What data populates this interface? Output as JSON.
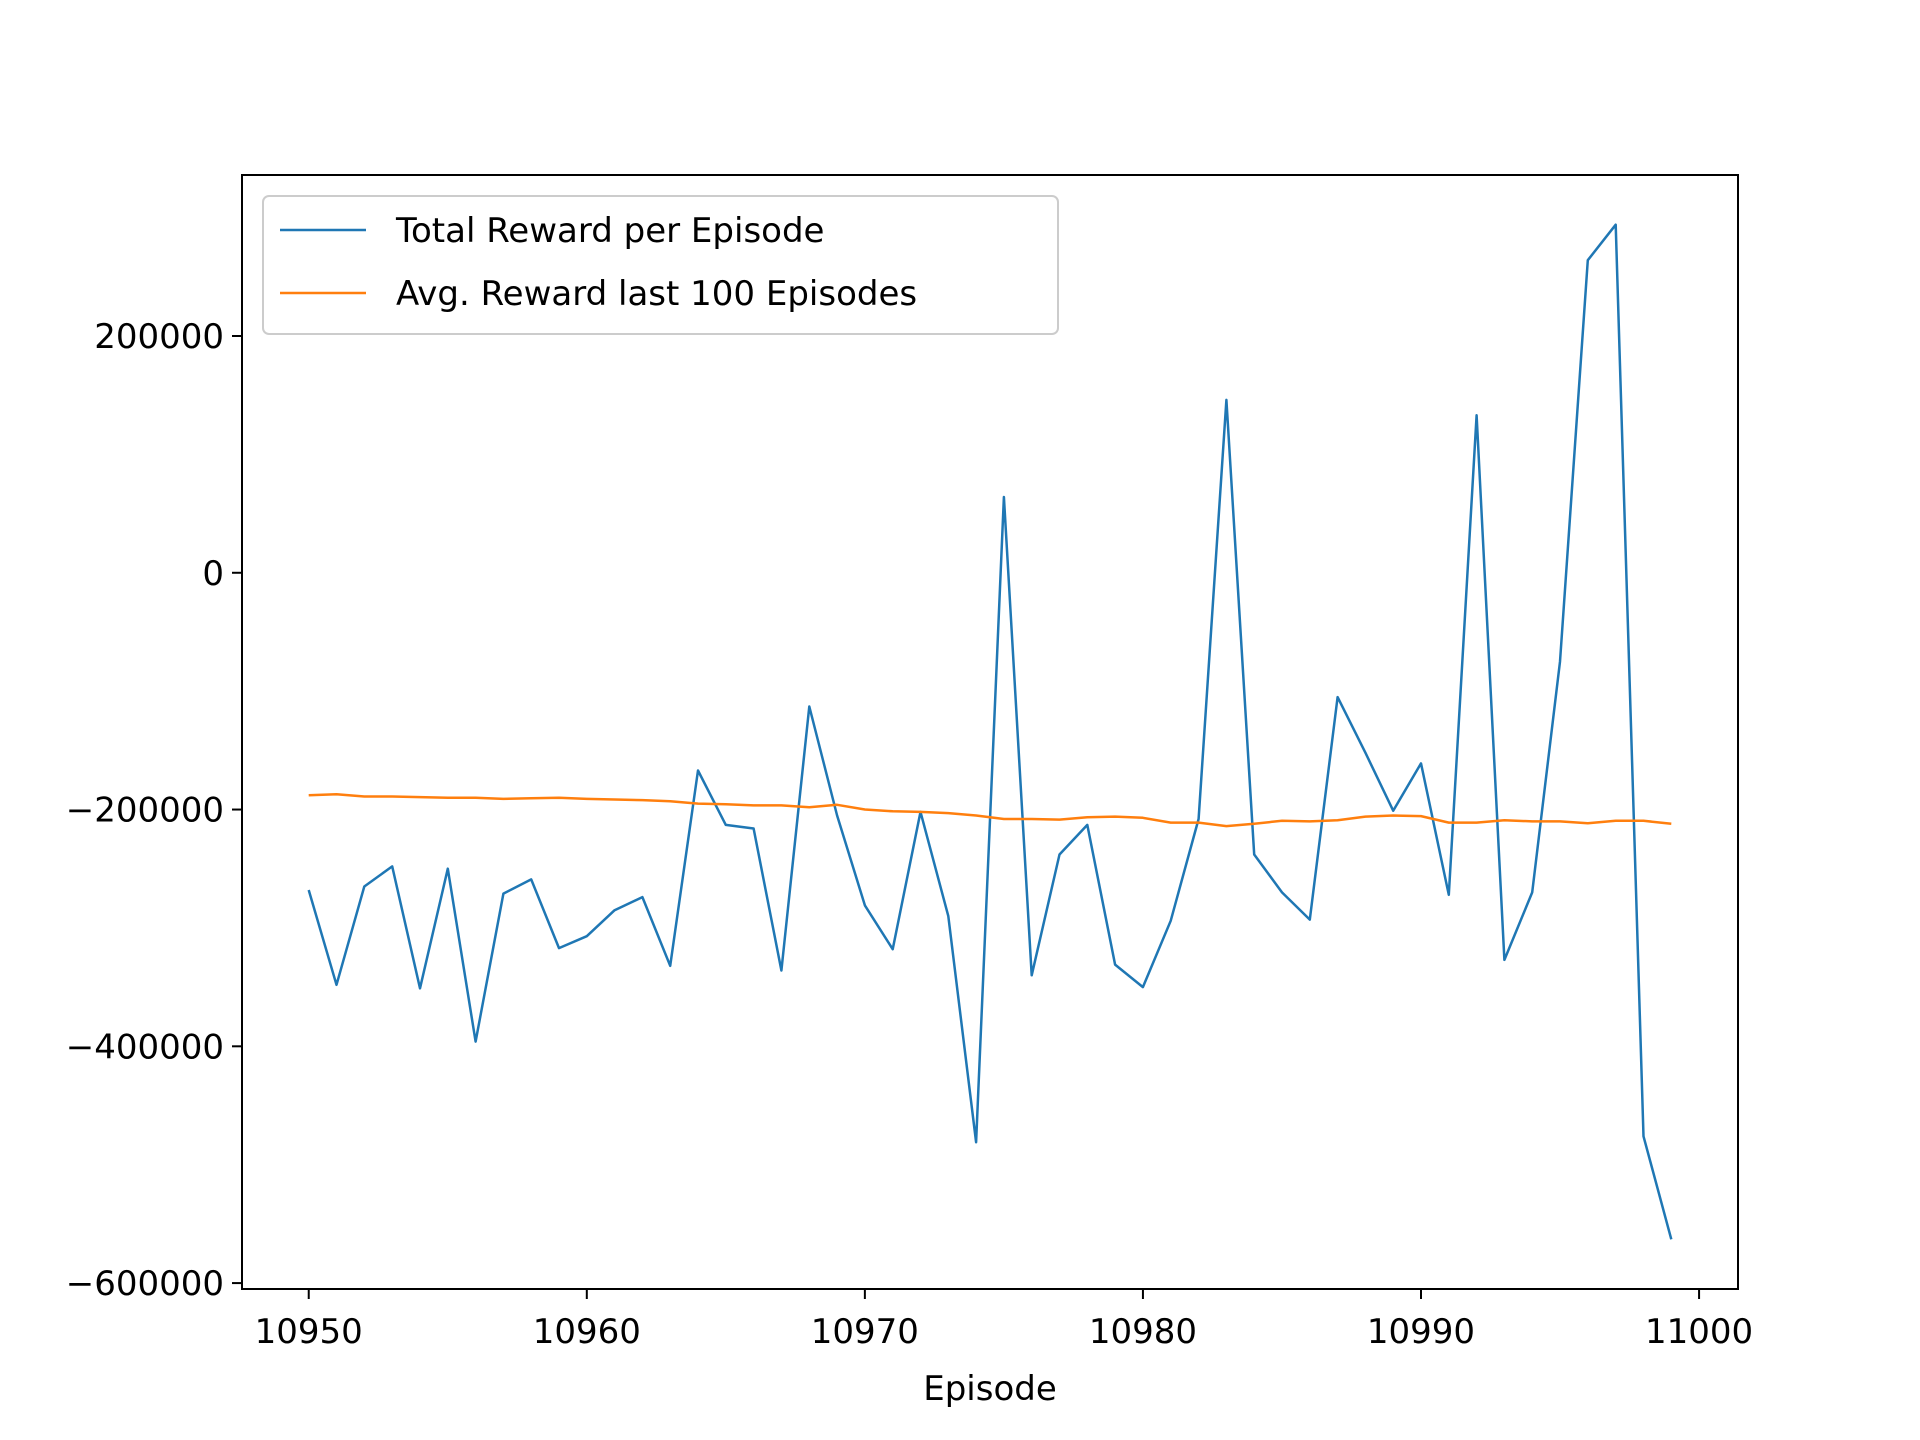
{
  "chart_data": {
    "type": "line",
    "title": "",
    "xlabel": "Episode",
    "ylabel": "",
    "xlim": [
      10947.6,
      11001.4
    ],
    "ylim": [
      -605000,
      336000
    ],
    "xticks": [
      10950,
      10960,
      10970,
      10980,
      10990,
      11000
    ],
    "yticks": [
      -600000,
      -400000,
      -200000,
      0,
      200000
    ],
    "ytick_labels": [
      "−600000",
      "−400000",
      "−200000",
      "0",
      "200000"
    ],
    "xtick_labels": [
      "10950",
      "10960",
      "10970",
      "10980",
      "10990",
      "11000"
    ],
    "grid": false,
    "legend_position": "upper-left",
    "x": [
      10950,
      10951,
      10952,
      10953,
      10954,
      10955,
      10956,
      10957,
      10958,
      10959,
      10960,
      10961,
      10962,
      10963,
      10964,
      10965,
      10966,
      10967,
      10968,
      10969,
      10970,
      10971,
      10972,
      10973,
      10974,
      10975,
      10976,
      10977,
      10978,
      10979,
      10980,
      10981,
      10982,
      10983,
      10984,
      10985,
      10986,
      10987,
      10988,
      10989,
      10990,
      10991,
      10992,
      10993,
      10994,
      10995,
      10996,
      10997,
      10998,
      10999
    ],
    "series": [
      {
        "name": "Total Reward per Episode",
        "color": "#1f77b4",
        "values": [
          -268000,
          -348000,
          -265000,
          -248000,
          -351000,
          -250000,
          -396000,
          -271000,
          -259000,
          -317000,
          -307000,
          -285000,
          -274000,
          -332000,
          -167000,
          -213000,
          -216000,
          -336000,
          -113000,
          -205000,
          -281000,
          -318000,
          -202000,
          -290000,
          -481000,
          64000,
          -340000,
          -238000,
          -213000,
          -331000,
          -350000,
          -294000,
          -208000,
          146000,
          -238000,
          -270000,
          -293000,
          -105000,
          -152000,
          -201000,
          -161000,
          -272000,
          133000,
          -327000,
          -270000,
          -75000,
          264000,
          294000,
          -476000,
          -563000
        ]
      },
      {
        "name": "Avg. Reward last 100 Episodes",
        "color": "#ff7f0e",
        "values": [
          -188000,
          -187000,
          -189000,
          -189000,
          -189500,
          -190000,
          -190000,
          -191000,
          -190500,
          -190000,
          -191000,
          -191500,
          -192000,
          -193000,
          -195000,
          -195500,
          -196500,
          -196500,
          -198000,
          -196000,
          -200000,
          -201500,
          -202000,
          -203000,
          -205000,
          -208000,
          -208000,
          -208500,
          -206500,
          -206000,
          -207000,
          -211000,
          -211000,
          -214000,
          -212000,
          -209500,
          -210000,
          -209000,
          -206000,
          -205000,
          -205500,
          -211000,
          -211000,
          -209000,
          -210000,
          -210000,
          -211500,
          -209500,
          -209500,
          -212000
        ]
      }
    ]
  }
}
